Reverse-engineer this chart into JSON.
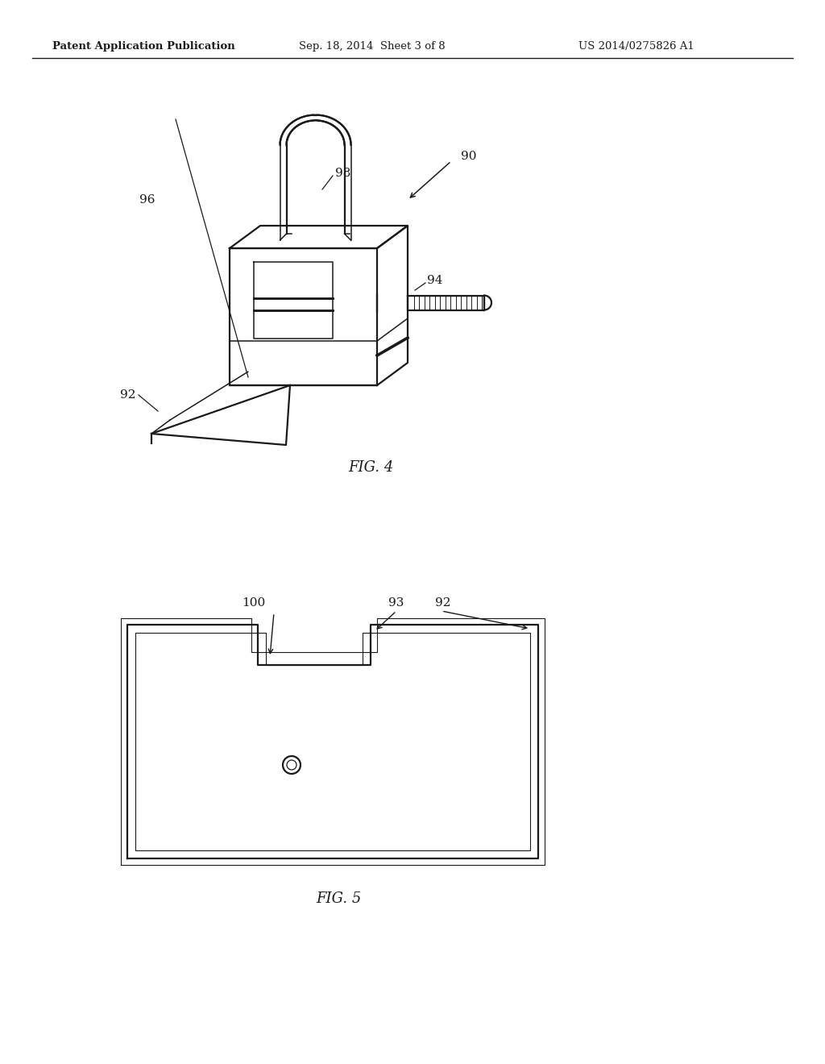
{
  "bg_color": "#ffffff",
  "line_color": "#1a1a1a",
  "header_left": "Patent Application Publication",
  "header_center": "Sep. 18, 2014  Sheet 3 of 8",
  "header_right": "US 2014/0275826 A1",
  "fig4_label": "FIG. 4",
  "fig5_label": "FIG. 5",
  "label_90": "90",
  "label_92_fig4": "92",
  "label_94": "94",
  "label_96": "96",
  "label_98": "98",
  "label_100": "100",
  "label_92_fig5": "92",
  "label_93": "93"
}
